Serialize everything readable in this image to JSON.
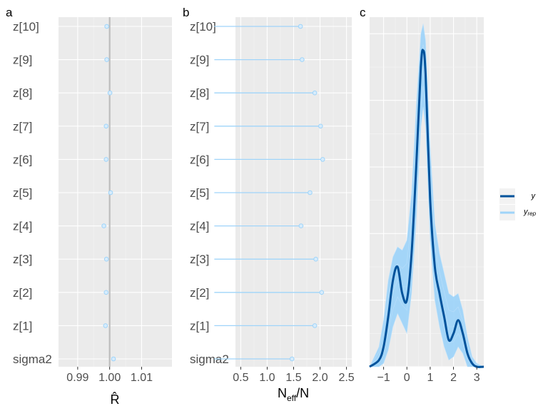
{
  "chart_data": [
    {
      "panel_label": "a",
      "type": "scatter",
      "categories": [
        "z[10]",
        "z[9]",
        "z[8]",
        "z[7]",
        "z[6]",
        "z[5]",
        "z[4]",
        "z[3]",
        "z[2]",
        "z[1]",
        "sigma2"
      ],
      "values": [
        0.9991,
        0.9991,
        1.0001,
        0.9989,
        0.9989,
        1.0003,
        0.9982,
        0.999,
        0.9989,
        0.9987,
        1.0012
      ],
      "xlabel": "R̂",
      "xlim": [
        0.984,
        1.0195
      ],
      "xticks": [
        0.99,
        1.0,
        1.01
      ],
      "xtick_labels": [
        "0.99",
        "1.00",
        "1.01"
      ],
      "reference_lines": [
        {
          "x": 1.0,
          "style": "solid"
        },
        {
          "x": 1.01,
          "style": "dotted"
        }
      ],
      "point_color": "#9fd4f9",
      "grid": true
    },
    {
      "panel_label": "b",
      "type": "lollipop",
      "categories": [
        "z[10]",
        "z[9]",
        "z[8]",
        "z[7]",
        "z[6]",
        "z[5]",
        "z[4]",
        "z[3]",
        "z[2]",
        "z[1]",
        "sigma2"
      ],
      "values": [
        1.63,
        1.66,
        1.9,
        2.01,
        2.05,
        1.81,
        1.64,
        1.92,
        2.03,
        1.9,
        1.47
      ],
      "xlabel": "N_eff/N",
      "xlabel_main": "N",
      "xlabel_sub": "eff",
      "xlabel_tail": "/N",
      "xlim": [
        0.4,
        2.6
      ],
      "xticks": [
        0.5,
        1.0,
        1.5,
        2.0,
        2.5
      ],
      "xtick_labels": [
        "0.5",
        "1.0",
        "1.5",
        "2.0",
        "2.5"
      ],
      "reference_lines": [
        {
          "x": 0.5,
          "style": "dotted"
        },
        {
          "x": 1.0,
          "style": "dotted"
        }
      ],
      "point_color": "#9fd4f9",
      "grid": true
    },
    {
      "panel_label": "c",
      "type": "density",
      "xlim": [
        -1.6,
        3.3
      ],
      "xticks": [
        -1,
        0,
        1,
        2,
        3
      ],
      "xtick_labels": [
        "−1",
        "0",
        "1",
        "2",
        "3"
      ],
      "y_axis_labels_shown": false,
      "series": [
        {
          "name": "y",
          "color": "#00529b",
          "x": [
            -1.6,
            -1.2,
            -1.0,
            -0.8,
            -0.6,
            -0.4,
            -0.2,
            0.0,
            0.2,
            0.4,
            0.6,
            0.7,
            0.8,
            1.0,
            1.2,
            1.4,
            1.6,
            1.8,
            2.0,
            2.2,
            2.4,
            2.6,
            2.8,
            3.0,
            3.3
          ],
          "values": [
            0.0,
            0.02,
            0.06,
            0.15,
            0.26,
            0.3,
            0.22,
            0.2,
            0.34,
            0.6,
            0.9,
            0.95,
            0.88,
            0.5,
            0.3,
            0.22,
            0.15,
            0.08,
            0.1,
            0.14,
            0.1,
            0.04,
            0.01,
            0.0,
            0.0
          ]
        },
        {
          "name": "y_rep",
          "name_main": "y",
          "name_sub": "rep",
          "color": "#9fd4f9",
          "envelope_x": [
            -1.6,
            -1.2,
            -1.0,
            -0.8,
            -0.6,
            -0.4,
            -0.2,
            0.0,
            0.2,
            0.4,
            0.6,
            0.7,
            0.8,
            1.0,
            1.2,
            1.4,
            1.6,
            1.8,
            2.0,
            2.2,
            2.4,
            2.6,
            2.8,
            3.0,
            3.3
          ],
          "envelope_upper": [
            0.0,
            0.06,
            0.14,
            0.26,
            0.33,
            0.36,
            0.35,
            0.38,
            0.52,
            0.78,
            1.0,
            1.03,
            0.98,
            0.66,
            0.43,
            0.34,
            0.28,
            0.22,
            0.21,
            0.22,
            0.17,
            0.09,
            0.03,
            0.01,
            0.0
          ],
          "envelope_lower": [
            0.0,
            0.0,
            0.01,
            0.05,
            0.12,
            0.16,
            0.13,
            0.1,
            0.22,
            0.44,
            0.72,
            0.78,
            0.72,
            0.38,
            0.2,
            0.12,
            0.06,
            0.02,
            0.03,
            0.06,
            0.04,
            0.0,
            0.0,
            0.0,
            0.0
          ]
        }
      ],
      "ylim": [
        0.0,
        1.05
      ],
      "legend_position": "right",
      "grid": true
    }
  ]
}
